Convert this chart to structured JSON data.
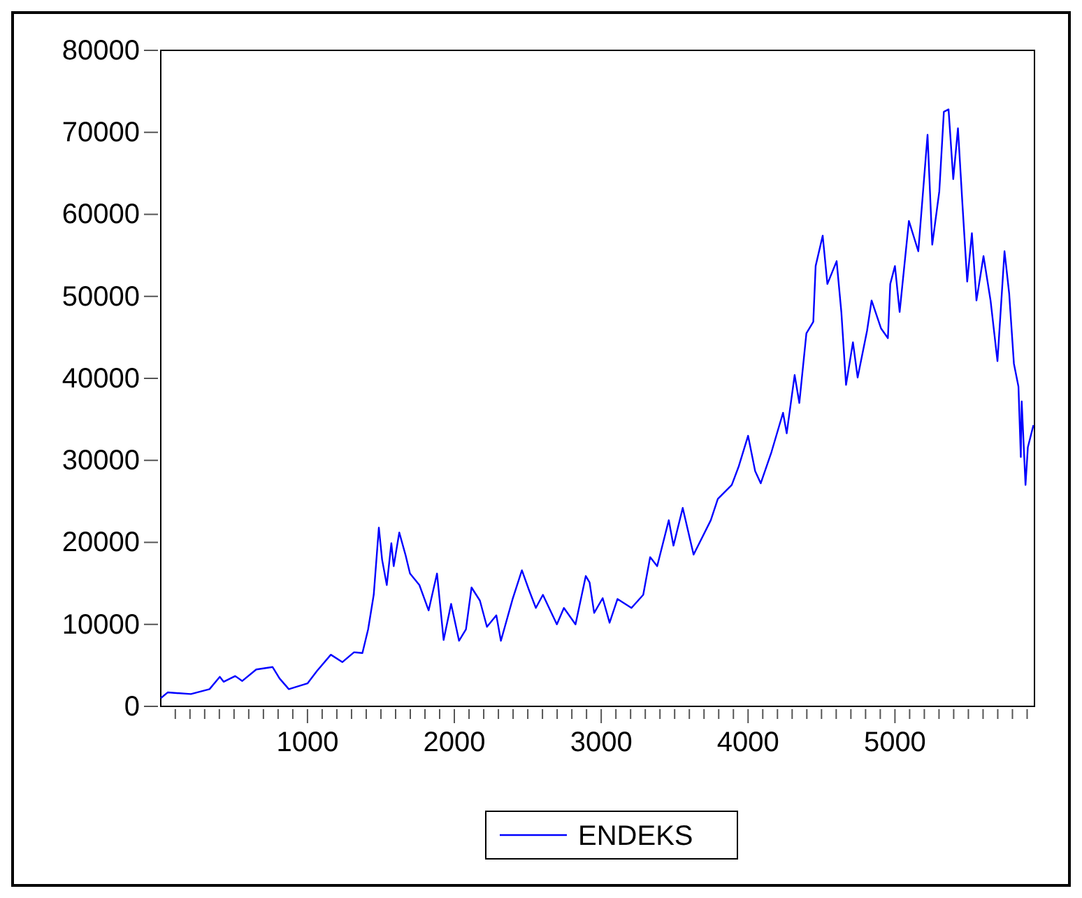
{
  "chart_data": {
    "type": "line",
    "xlim": [
      1,
      5950
    ],
    "ylim": [
      0,
      80000
    ],
    "xticks": [
      {
        "value": 100,
        "label": null
      },
      {
        "value": 200,
        "label": null
      },
      {
        "value": 300,
        "label": null
      },
      {
        "value": 400,
        "label": null
      },
      {
        "value": 500,
        "label": null
      },
      {
        "value": 600,
        "label": null
      },
      {
        "value": 700,
        "label": null
      },
      {
        "value": 800,
        "label": null
      },
      {
        "value": 900,
        "label": null
      },
      1000,
      {
        "value": 1100,
        "label": null
      },
      {
        "value": 1200,
        "label": null
      },
      {
        "value": 1300,
        "label": null
      },
      {
        "value": 1400,
        "label": null
      },
      {
        "value": 1500,
        "label": null
      },
      {
        "value": 1600,
        "label": null
      },
      {
        "value": 1700,
        "label": null
      },
      {
        "value": 1800,
        "label": null
      },
      {
        "value": 1900,
        "label": null
      },
      2000,
      {
        "value": 2100,
        "label": null
      },
      {
        "value": 2200,
        "label": null
      },
      {
        "value": 2300,
        "label": null
      },
      {
        "value": 2400,
        "label": null
      },
      {
        "value": 2500,
        "label": null
      },
      {
        "value": 2600,
        "label": null
      },
      {
        "value": 2700,
        "label": null
      },
      {
        "value": 2800,
        "label": null
      },
      {
        "value": 2900,
        "label": null
      },
      3000,
      {
        "value": 3100,
        "label": null
      },
      {
        "value": 3200,
        "label": null
      },
      {
        "value": 3300,
        "label": null
      },
      {
        "value": 3400,
        "label": null
      },
      {
        "value": 3500,
        "label": null
      },
      {
        "value": 3600,
        "label": null
      },
      {
        "value": 3700,
        "label": null
      },
      {
        "value": 3800,
        "label": null
      },
      {
        "value": 3900,
        "label": null
      },
      4000,
      {
        "value": 4100,
        "label": null
      },
      {
        "value": 4200,
        "label": null
      },
      {
        "value": 4300,
        "label": null
      },
      {
        "value": 4400,
        "label": null
      },
      {
        "value": 4500,
        "label": null
      },
      {
        "value": 4600,
        "label": null
      },
      {
        "value": 4700,
        "label": null
      },
      {
        "value": 4800,
        "label": null
      },
      {
        "value": 4900,
        "label": null
      },
      5000,
      {
        "value": 5100,
        "label": null
      },
      {
        "value": 5200,
        "label": null
      },
      {
        "value": 5300,
        "label": null
      },
      {
        "value": 5400,
        "label": null
      },
      {
        "value": 5500,
        "label": null
      },
      {
        "value": 5600,
        "label": null
      },
      {
        "value": 5700,
        "label": null
      },
      {
        "value": 5800,
        "label": null
      },
      {
        "value": 5900,
        "label": null
      }
    ],
    "yticks": [
      0,
      10000,
      20000,
      30000,
      40000,
      50000,
      60000,
      70000,
      80000
    ],
    "grid": false,
    "legend": "bottom",
    "marker": "none",
    "line_style": "solid",
    "series": [
      {
        "name": "ENDEKS",
        "color": "#0000ff",
        "x": [
          1,
          48,
          206,
          333,
          403,
          429,
          508,
          556,
          651,
          762,
          810,
          873,
          1000,
          1064,
          1159,
          1238,
          1317,
          1374,
          1413,
          1451,
          1486,
          1508,
          1540,
          1571,
          1587,
          1625,
          1667,
          1698,
          1762,
          1825,
          1882,
          1927,
          1978,
          2032,
          2079,
          2117,
          2174,
          2222,
          2286,
          2317,
          2397,
          2460,
          2508,
          2555,
          2603,
          2698,
          2746,
          2825,
          2895,
          2921,
          2952,
          3010,
          3057,
          3111,
          3206,
          3286,
          3333,
          3381,
          3460,
          3492,
          3555,
          3629,
          3746,
          3794,
          3889,
          3937,
          4000,
          4048,
          4086,
          4159,
          4238,
          4263,
          4317,
          4349,
          4397,
          4444,
          4460,
          4508,
          4540,
          4603,
          4635,
          4667,
          4714,
          4746,
          4810,
          4841,
          4905,
          4952,
          4968,
          5000,
          5032,
          5095,
          5159,
          5222,
          5254,
          5302,
          5333,
          5365,
          5397,
          5429,
          5460,
          5492,
          5524,
          5555,
          5603,
          5651,
          5698,
          5746,
          5778,
          5810,
          5841,
          5857,
          5863,
          5889,
          5905,
          5943
        ],
        "values": [
          1000,
          1700,
          1500,
          2100,
          3600,
          3000,
          3700,
          3100,
          4500,
          4800,
          3400,
          2100,
          2800,
          4300,
          6300,
          5400,
          6600,
          6500,
          9400,
          13600,
          21800,
          17900,
          14800,
          19900,
          17100,
          21200,
          18500,
          16200,
          14800,
          11700,
          16200,
          8100,
          12500,
          8000,
          9400,
          14500,
          12900,
          9700,
          11100,
          8000,
          13100,
          16600,
          14200,
          12000,
          13600,
          10000,
          12000,
          10000,
          15900,
          15100,
          11400,
          13200,
          10200,
          13100,
          12000,
          13600,
          18200,
          17100,
          22700,
          19600,
          24200,
          18500,
          22700,
          25300,
          27000,
          29300,
          33000,
          28700,
          27200,
          31000,
          35800,
          33300,
          40400,
          37000,
          45500,
          46900,
          53700,
          57400,
          51500,
          54300,
          48100,
          39200,
          44400,
          40100,
          45800,
          49500,
          46100,
          44900,
          51500,
          53700,
          48100,
          59200,
          55500,
          69700,
          56300,
          62800,
          72500,
          72800,
          64300,
          70500,
          61100,
          51800,
          57700,
          49500,
          54900,
          49500,
          42100,
          55500,
          50300,
          41800,
          39000,
          30400,
          37200,
          27000,
          31600,
          34300
        ]
      }
    ]
  }
}
